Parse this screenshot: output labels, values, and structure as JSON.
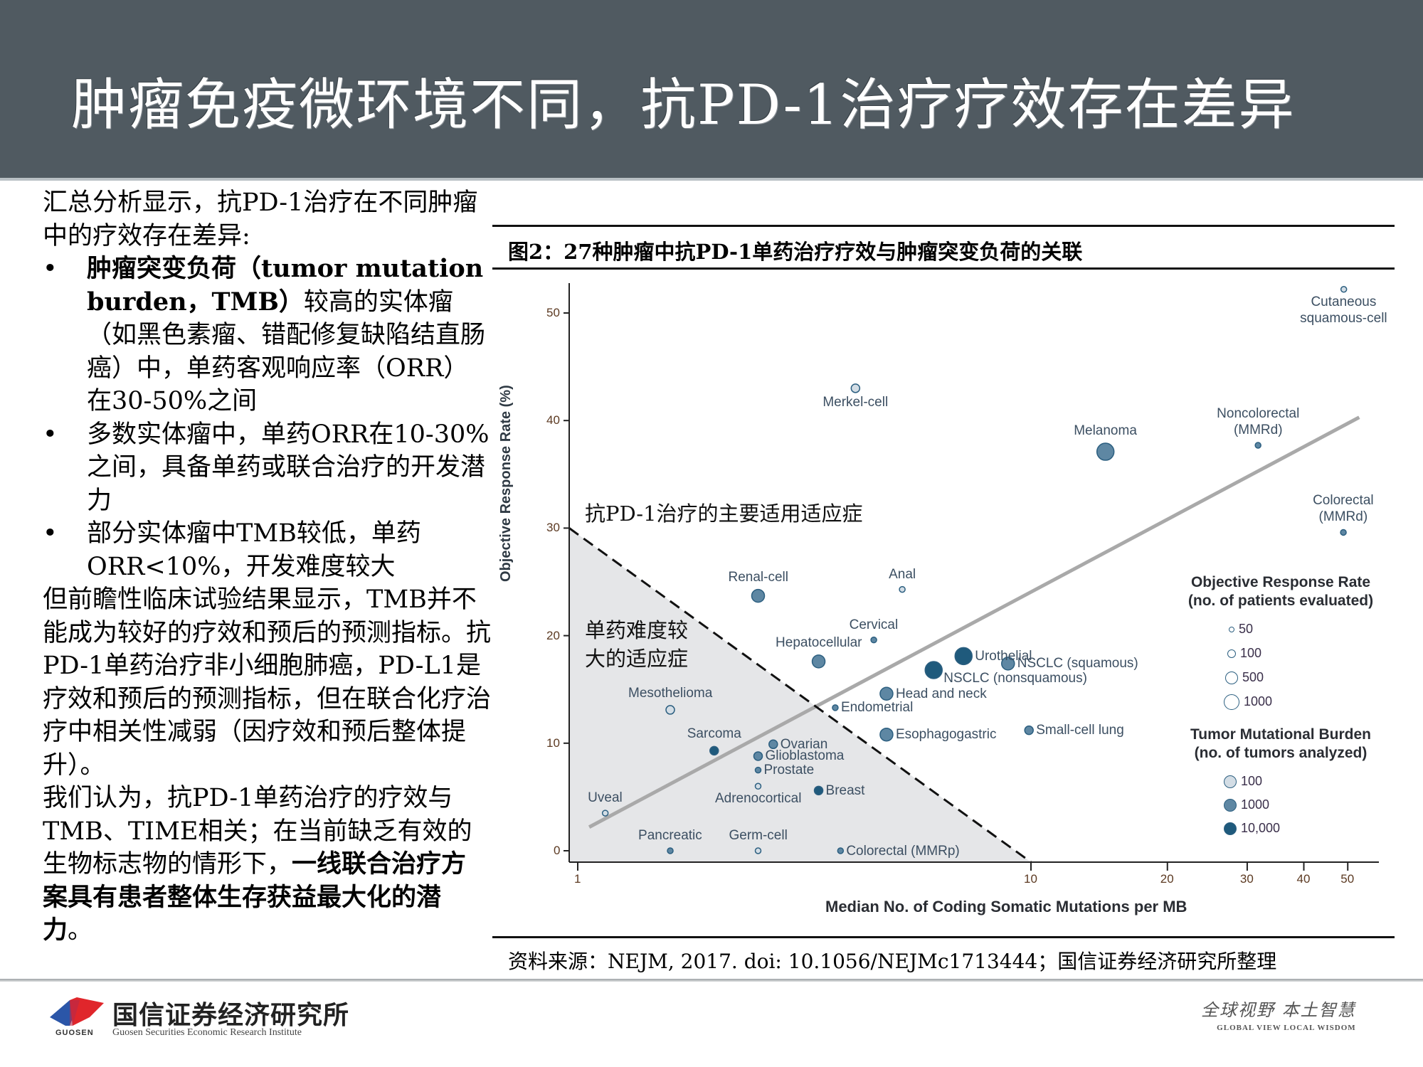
{
  "header": {
    "title": "肿瘤免疫微环境不同，抗PD-1治疗疗效存在差异"
  },
  "left_text": {
    "intro": "汇总分析显示，抗PD-1治疗在不同肿瘤中的疗效存在差异:",
    "bullets": [
      {
        "bold_part": "肿瘤突变负荷（tumor mutation burden，TMB）",
        "rest": "较高的实体瘤（如黑色素瘤、错配修复缺陷结直肠癌）中，单药客观响应率（ORR）在30-50%之间"
      },
      {
        "text": "多数实体瘤中，单药ORR在10-30%之间，具备单药或联合治疗的开发潜力"
      },
      {
        "text": "部分实体瘤中TMB较低，单药ORR<10%，开发难度较大"
      }
    ],
    "bullet_char": "•",
    "para2": "但前瞻性临床试验结果显示，TMB并不能成为较好的疗效和预后的预测指标。抗PD-1单药治疗非小细胞肺癌，PD-L1是疗效和预后的预测指标，但在联合化疗治疗中相关性减弱（因疗效和预后整体提升）。",
    "para3_plain": "我们认为，抗PD-1单药治疗的疗效与TMB、TIME相关；在当前缺乏有效的生物标志物的情形下，",
    "para3_bold": "一线联合治疗方案具有患者整体生存获益最大化的潜力",
    "para3_end": "。"
  },
  "figure": {
    "title": "图2：27种肿瘤中抗PD-1单药治疗疗效与肿瘤突变负荷的关联",
    "annotation_upper": "抗PD-1治疗的主要适用适应症",
    "annotation_lower_line1": "单药难度较",
    "annotation_lower_line2": "大的适应症",
    "source": "资料来源：NEJM, 2017. doi: 10.1056/NEJMc1713444；国信证券经济研究所整理"
  },
  "chart_data": {
    "type": "scatter",
    "title": "图2：27种肿瘤中抗PD-1单药治疗疗效与肿瘤突变负荷的关联",
    "xlabel": "Median No. of Coding Somatic Mutations per MB",
    "ylabel": "Objective Response Rate (%)",
    "x_scale": "log",
    "xlim": [
      0.95,
      55
    ],
    "ylim": [
      -1,
      53
    ],
    "x_ticks": [
      1,
      10,
      20,
      30,
      40,
      50
    ],
    "y_ticks": [
      0,
      10,
      20,
      30,
      40,
      50
    ],
    "grid": false,
    "trend_line": {
      "from": [
        1.06,
        2.2
      ],
      "to": [
        53,
        40.3
      ],
      "color": "#a9a9a9"
    },
    "shaded_region": {
      "description": "单药难度较大的适应症",
      "dashed_boundary": {
        "from": [
          1,
          30
        ],
        "to": [
          10,
          -1
        ]
      },
      "fill": "#e5e6e8"
    },
    "points": [
      {
        "name": "Cutaneous squamous-cell",
        "x": 49,
        "y": 52.2,
        "orr_n": 50,
        "tmb_n": 100,
        "label_pos": "below-center"
      },
      {
        "name": "Merkel-cell",
        "x": 4.1,
        "y": 43.0,
        "orr_n": 100,
        "tmb_n": 100,
        "label_pos": "below-center"
      },
      {
        "name": "Melanoma",
        "x": 14.6,
        "y": 37.1,
        "orr_n": 1000,
        "tmb_n": 1000,
        "label_pos": "above-center"
      },
      {
        "name": "Noncolorectal (MMRd)",
        "x": 31.7,
        "y": 37.7,
        "orr_n": 50,
        "tmb_n": 1000,
        "label_pos": "above-center"
      },
      {
        "name": "Colorectal (MMRd)",
        "x": 48.9,
        "y": 29.6,
        "orr_n": 50,
        "tmb_n": 1000,
        "label_pos": "above-center"
      },
      {
        "name": "Renal-cell",
        "x": 2.5,
        "y": 23.7,
        "orr_n": 500,
        "tmb_n": 1000,
        "label_pos": "above-center"
      },
      {
        "name": "Anal",
        "x": 5.2,
        "y": 24.3,
        "orr_n": 50,
        "tmb_n": 100,
        "label_pos": "above-center"
      },
      {
        "name": "Cervical",
        "x": 4.5,
        "y": 19.6,
        "orr_n": 50,
        "tmb_n": 1000,
        "label_pos": "above-center"
      },
      {
        "name": "Hepatocellular",
        "x": 3.4,
        "y": 17.6,
        "orr_n": 500,
        "tmb_n": 1000,
        "label_pos": "above-center"
      },
      {
        "name": "Urothelial",
        "x": 7.1,
        "y": 18.1,
        "orr_n": 1000,
        "tmb_n": 10000,
        "label_pos": "right"
      },
      {
        "name": "NSCLC (squamous)",
        "x": 8.9,
        "y": 17.4,
        "orr_n": 500,
        "tmb_n": 1000,
        "label_pos": "right"
      },
      {
        "name": "NSCLC (nonsquamous)",
        "x": 6.1,
        "y": 16.8,
        "orr_n": 1000,
        "tmb_n": 10000,
        "label_pos": "right-below"
      },
      {
        "name": "Head and neck",
        "x": 4.8,
        "y": 14.6,
        "orr_n": 500,
        "tmb_n": 1000,
        "label_pos": "right"
      },
      {
        "name": "Endometrial",
        "x": 3.7,
        "y": 13.3,
        "orr_n": 50,
        "tmb_n": 1000,
        "label_pos": "right"
      },
      {
        "name": "Mesothelioma",
        "x": 1.6,
        "y": 13.1,
        "orr_n": 100,
        "tmb_n": 100,
        "label_pos": "above-center"
      },
      {
        "name": "Esophagogastric",
        "x": 4.8,
        "y": 10.8,
        "orr_n": 500,
        "tmb_n": 1000,
        "label_pos": "right"
      },
      {
        "name": "Small-cell lung",
        "x": 9.9,
        "y": 11.2,
        "orr_n": 100,
        "tmb_n": 1000,
        "label_pos": "right"
      },
      {
        "name": "Sarcoma",
        "x": 2.0,
        "y": 9.3,
        "orr_n": 100,
        "tmb_n": 10000,
        "label_pos": "above-center"
      },
      {
        "name": "Ovarian",
        "x": 2.7,
        "y": 9.9,
        "orr_n": 100,
        "tmb_n": 1000,
        "label_pos": "right"
      },
      {
        "name": "Glioblastoma",
        "x": 2.5,
        "y": 8.8,
        "orr_n": 100,
        "tmb_n": 1000,
        "label_pos": "right"
      },
      {
        "name": "Prostate",
        "x": 2.5,
        "y": 7.5,
        "orr_n": 50,
        "tmb_n": 1000,
        "label_pos": "right"
      },
      {
        "name": "Adrenocortical",
        "x": 2.5,
        "y": 6.0,
        "orr_n": 50,
        "tmb_n": 100,
        "label_pos": "below-center"
      },
      {
        "name": "Breast",
        "x": 3.4,
        "y": 5.6,
        "orr_n": 100,
        "tmb_n": 10000,
        "label_pos": "right"
      },
      {
        "name": "Uveal",
        "x": 1.15,
        "y": 3.5,
        "orr_n": 50,
        "tmb_n": 100,
        "label_pos": "above-center"
      },
      {
        "name": "Pancreatic",
        "x": 1.6,
        "y": 0,
        "orr_n": 50,
        "tmb_n": 1000,
        "label_pos": "above-center"
      },
      {
        "name": "Germ-cell",
        "x": 2.5,
        "y": 0,
        "orr_n": 50,
        "tmb_n": 100,
        "label_pos": "above-center"
      },
      {
        "name": "Colorectal (MMRp)",
        "x": 3.8,
        "y": 0,
        "orr_n": 50,
        "tmb_n": 1000,
        "label_pos": "right"
      }
    ],
    "legend": {
      "size_title_line1": "Objective Response Rate",
      "size_title_line2": "(no. of patients evaluated)",
      "size_entries": [
        "50",
        "100",
        "500",
        "1000"
      ],
      "color_title_line1": "Tumor Mutational Burden",
      "color_title_line2": "(no. of tumors analyzed)",
      "color_entries": [
        "100",
        "1000",
        "10,000"
      ],
      "colors": {
        "100": "#d3dde5",
        "1000": "#5e87a3",
        "10000": "#1f5a7c"
      },
      "stroke": "#2c5f80",
      "position": "right"
    }
  },
  "footer": {
    "logo_cn": "国信证券经济研究所",
    "logo_en": "Guosen Securities Economic Research Institute",
    "logo_mark_text": "GUOSEN",
    "slogan_cn": "全球视野  本土智慧",
    "slogan_en": "GLOBAL VIEW   LOCAL WISDOM"
  },
  "colors": {
    "header_bg": "#505a61",
    "header_text": "#ffffff",
    "tick_label": "#5c3a22",
    "shaded_region": "#e5e6e8",
    "trend_line": "#a9a9a9",
    "logo_red": "#e0262b",
    "logo_blue": "#2b56a8"
  }
}
